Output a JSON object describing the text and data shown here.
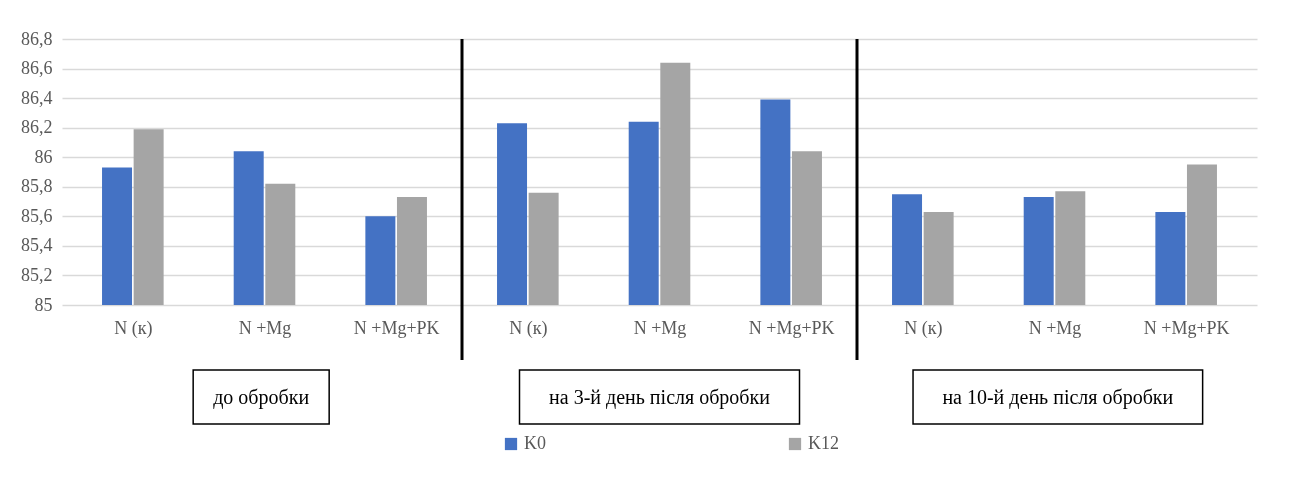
{
  "chart_data": {
    "type": "bar",
    "categories": [
      "N (к)",
      "N +Mg",
      "N +Mg+PK",
      "N (к)",
      "N +Mg",
      "N +Mg+PK",
      "N (к)",
      "N +Mg",
      "N +Mg+PK"
    ],
    "series": [
      {
        "name": "K0",
        "color": "#4472c4",
        "values": [
          85.93,
          86.04,
          85.6,
          86.23,
          86.24,
          86.39,
          85.75,
          85.73,
          85.63
        ]
      },
      {
        "name": "K12",
        "color": "#a5a5a5",
        "values": [
          86.19,
          85.82,
          85.73,
          85.76,
          86.64,
          86.04,
          85.63,
          85.77,
          85.95
        ]
      }
    ],
    "ylim": [
      85,
      86.8
    ],
    "yticks": [
      85,
      {
        "value": 85.2,
        "label": "85,2"
      },
      {
        "value": 85.4,
        "label": "85,4"
      },
      {
        "value": 85.6,
        "label": "85,6"
      },
      {
        "value": 85.8,
        "label": "85,8"
      },
      86,
      {
        "value": 86.2,
        "label": "86,2"
      },
      {
        "value": 86.4,
        "label": "86,4"
      },
      {
        "value": 86.6,
        "label": "86,6"
      },
      {
        "value": 86.8,
        "label": "86,8"
      }
    ],
    "annotations": [
      "до обробки",
      "на 3-й день після обробки",
      "на 10-й день після обробки"
    ],
    "grid": "y",
    "legend": "bottom"
  }
}
